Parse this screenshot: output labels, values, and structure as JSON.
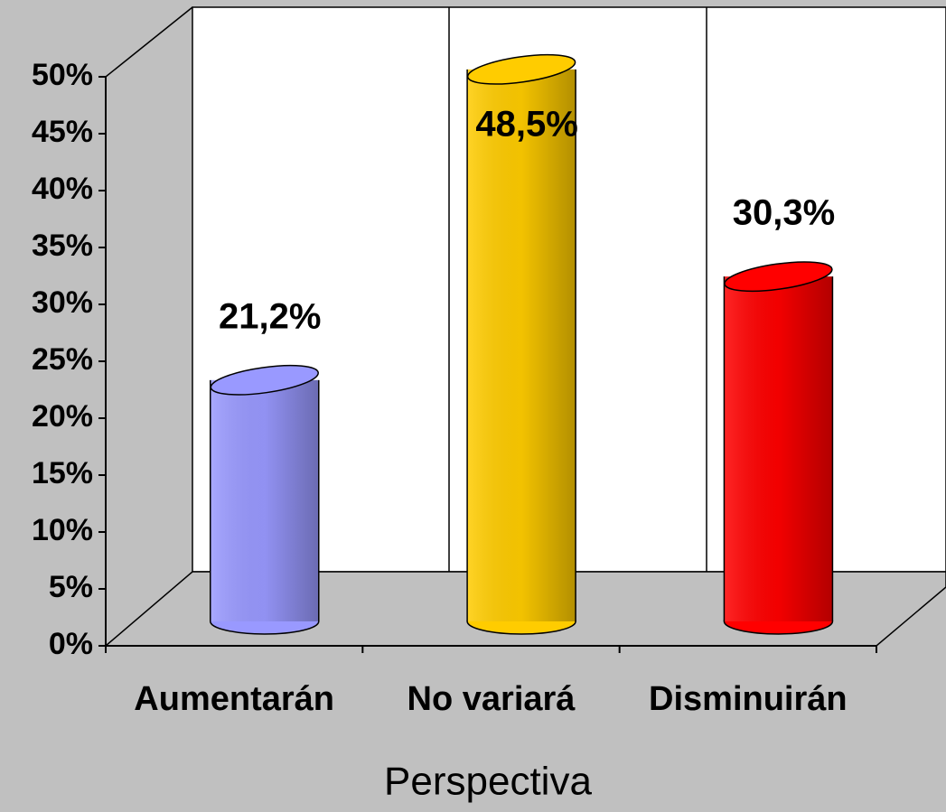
{
  "chart_data": {
    "type": "bar3d",
    "categories": [
      "Aumentarán",
      "No variará",
      "Disminuirán"
    ],
    "values": [
      21.2,
      48.5,
      30.3
    ],
    "value_labels": [
      "21,2%",
      "48,5%",
      "30,3%"
    ],
    "colors": [
      "#9999ff",
      "#ffcc00",
      "#ff0000"
    ],
    "ylim": [
      0,
      50
    ],
    "yticks": [
      {
        "value": 0,
        "label": "0%"
      },
      {
        "value": 5,
        "label": "5%"
      },
      {
        "value": 10,
        "label": "10%"
      },
      {
        "value": 15,
        "label": "15%"
      },
      {
        "value": 20,
        "label": "20%"
      },
      {
        "value": 25,
        "label": "25%"
      },
      {
        "value": 30,
        "label": "30%"
      },
      {
        "value": 35,
        "label": "35%"
      },
      {
        "value": 40,
        "label": "40%"
      },
      {
        "value": 45,
        "label": "45%"
      },
      {
        "value": 50,
        "label": "50%"
      }
    ],
    "xlabel": "Perspectiva"
  }
}
